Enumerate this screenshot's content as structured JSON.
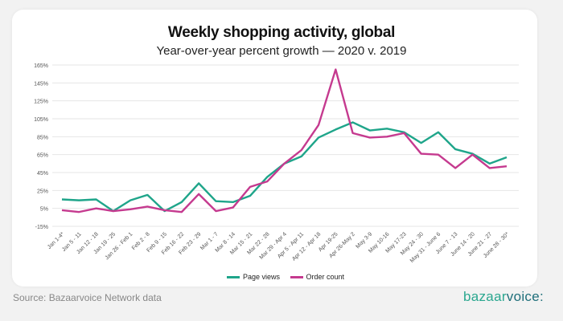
{
  "chart_data": {
    "type": "line",
    "title": "Weekly shopping activity, global",
    "subtitle": "Year-over-year percent growth — 2020 v. 2019",
    "xlabel": "",
    "ylabel": "",
    "ylim": [
      -15,
      165
    ],
    "yticks": [
      "-15%",
      "5%",
      "25%",
      "45%",
      "65%",
      "85%",
      "105%",
      "125%",
      "145%",
      "165%"
    ],
    "ytick_values": [
      -15,
      5,
      25,
      45,
      65,
      85,
      105,
      125,
      145,
      165
    ],
    "grid": true,
    "legend": "bottom",
    "categories": [
      "Jan 1-4*",
      "Jan 5 - 11",
      "Jan 12 - 18",
      "Jan 19 - 25",
      "Jan 26 - Feb 1",
      "Feb 2 - 8",
      "Feb 9 - 15",
      "Feb 16 - 22",
      "Feb 23 - 29",
      "Mar 1 - 7",
      "Mar 8 - 14",
      "Mar 15 - 21",
      "Mar 22 - 28",
      "Mar 29 - Apr 4",
      "Apr 5 - Apr 11",
      "Apr 12 - Apr 18",
      "Apr 19-25",
      "Apr 26-May 2",
      "May 3-9",
      "May 10-16",
      "May 17-23",
      "May 24 - 30",
      "May 31 - June 6",
      "June 7 - 13",
      "June 14 - 20",
      "June 21 - 27",
      "June 28 - 30*"
    ],
    "series": [
      {
        "name": "Page views",
        "color": "#1fa58a",
        "values": [
          15,
          14,
          15,
          2,
          14,
          20,
          2,
          12,
          33,
          13,
          12,
          19,
          40,
          55,
          63,
          84,
          93,
          101,
          92,
          94,
          90,
          78,
          90,
          71,
          66,
          55,
          62
        ]
      },
      {
        "name": "Order count",
        "color": "#c53a8f",
        "values": [
          3,
          1,
          5,
          2,
          4,
          7,
          3,
          1,
          21,
          2,
          6,
          29,
          35,
          55,
          70,
          98,
          160,
          89,
          84,
          85,
          89,
          66,
          65,
          50,
          65,
          50,
          52
        ]
      }
    ]
  },
  "footer": {
    "source": "Source: Bazaarvoice Network data",
    "logo_a": "bazaar",
    "logo_b": "voice:"
  }
}
